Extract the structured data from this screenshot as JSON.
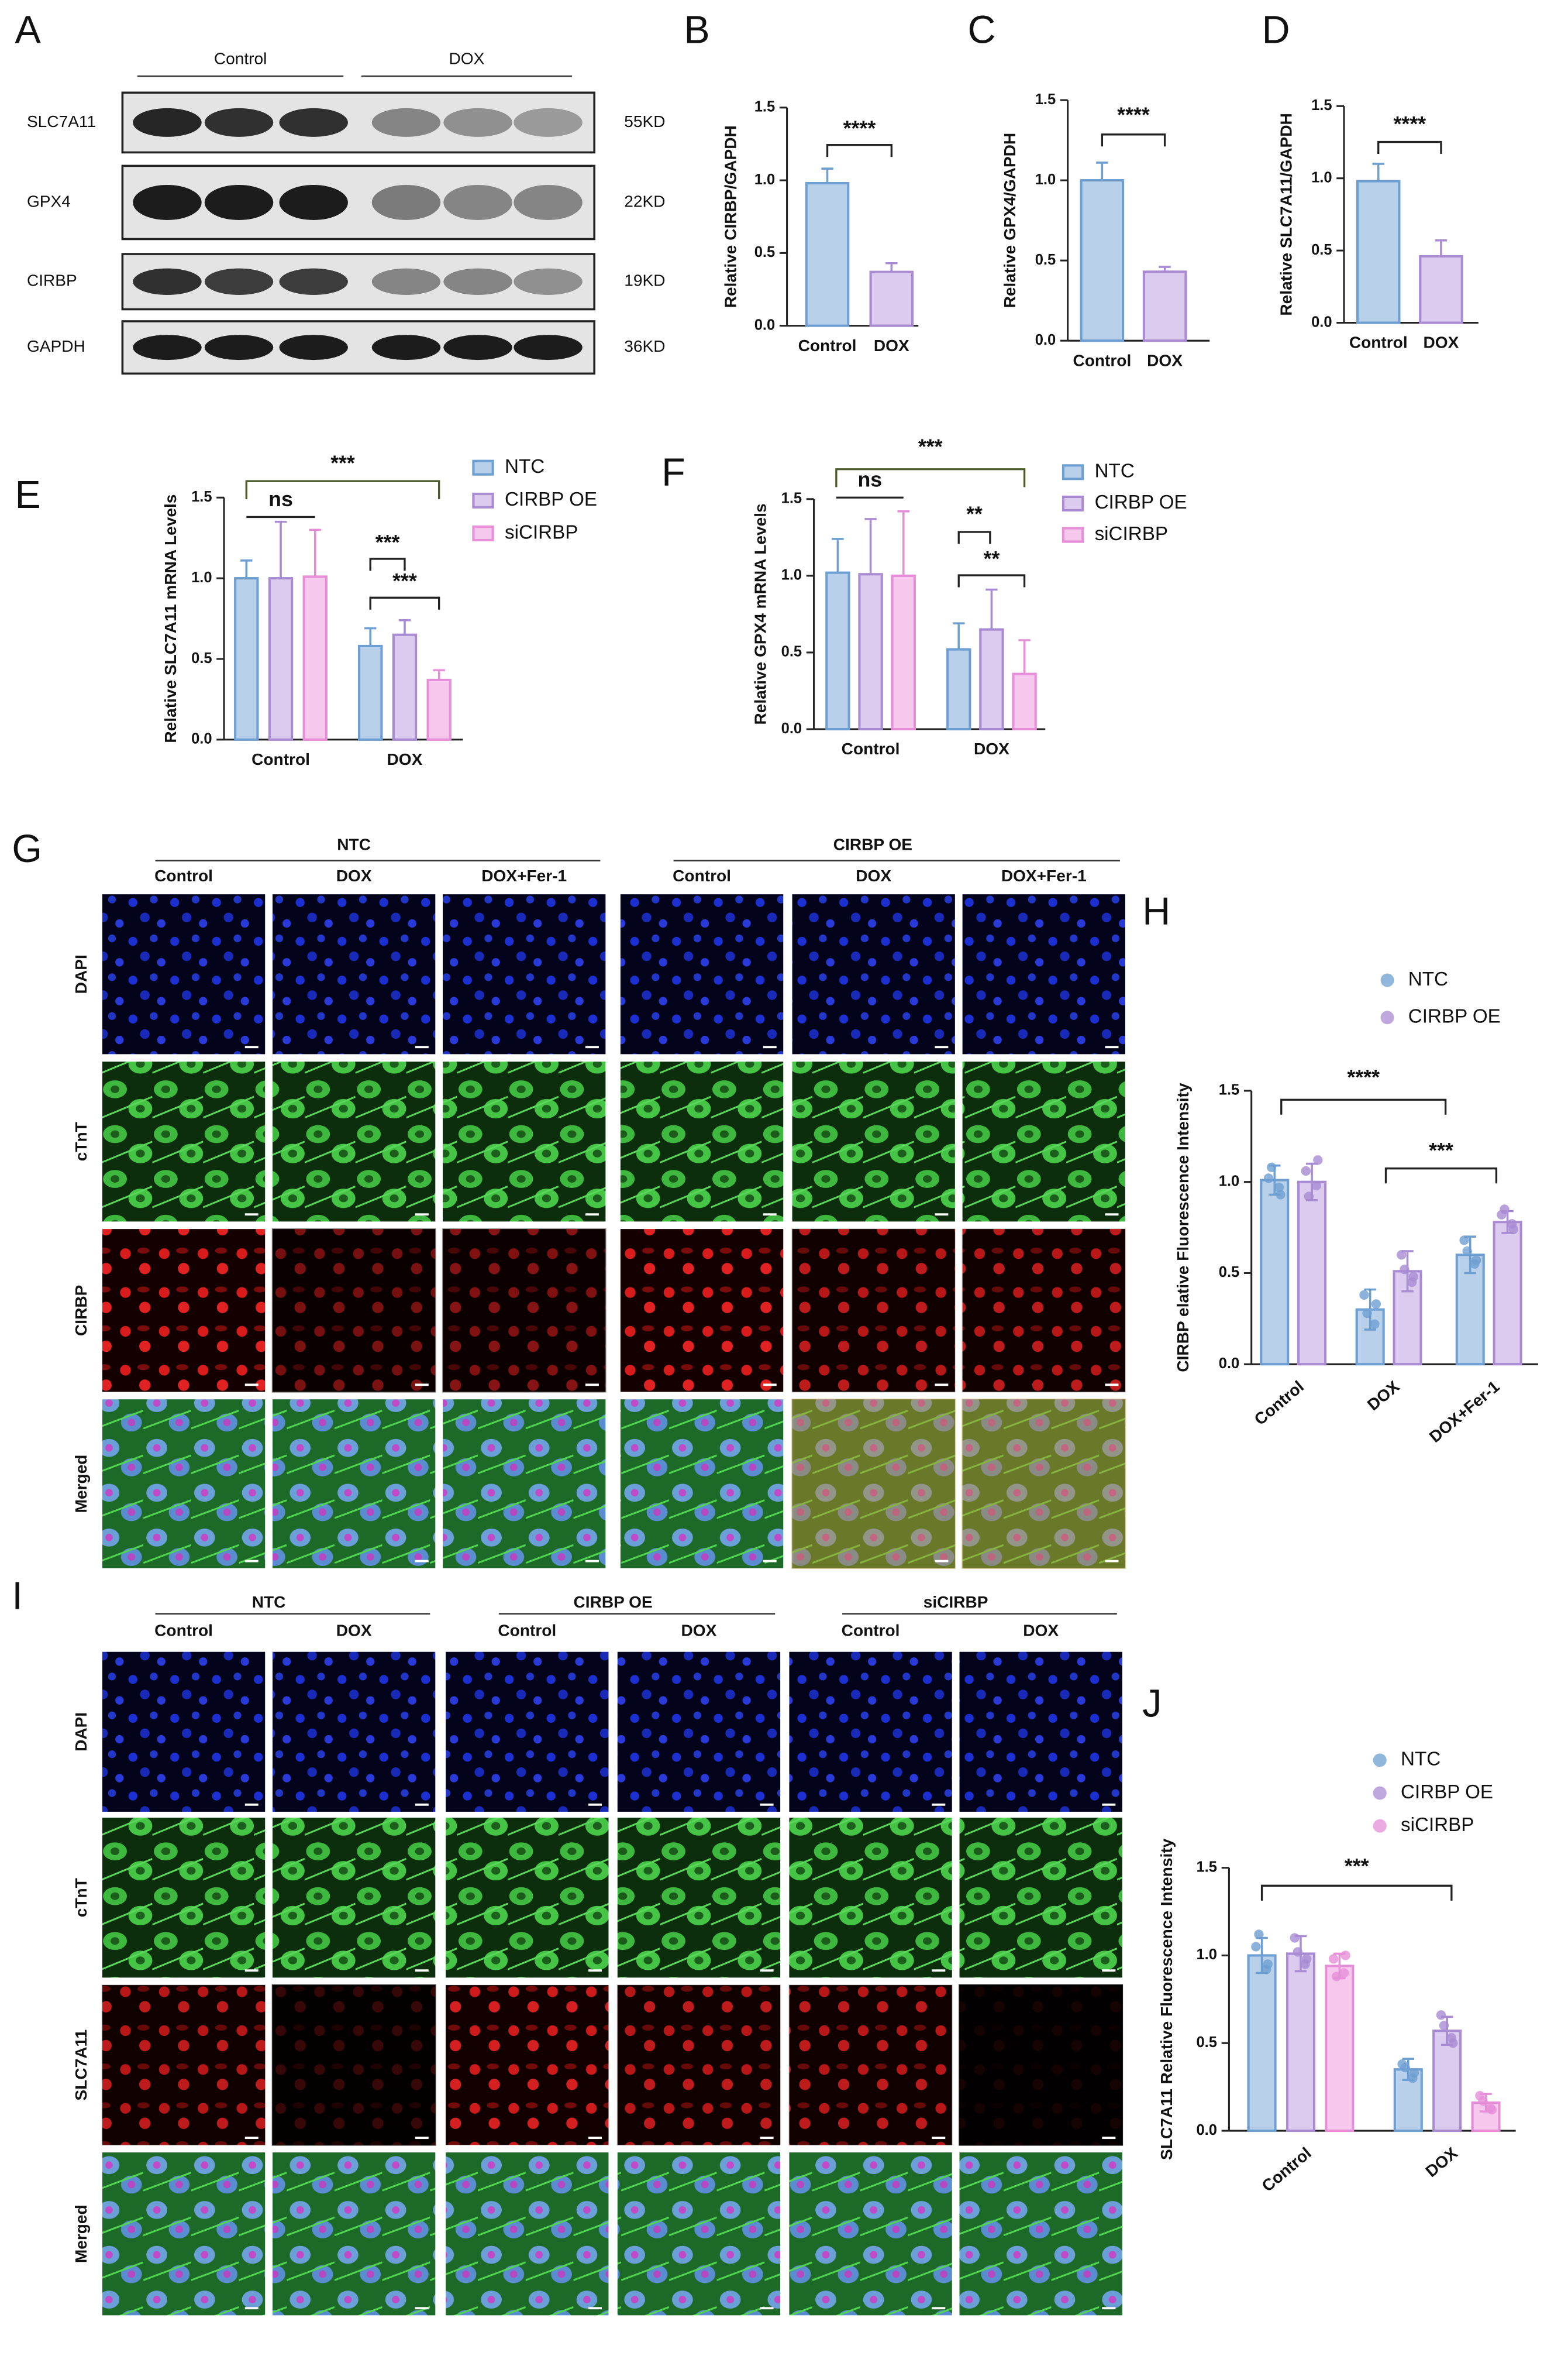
{
  "chart_data": [
    {
      "type": "bar",
      "panel": "B",
      "ylabel": "Relative CIRBP/GAPDH",
      "categories": [
        "Control",
        "DOX"
      ],
      "values": [
        0.98,
        0.37
      ],
      "errors": [
        0.1,
        0.06
      ],
      "colors": [
        "#b9d0ea",
        "#dccbee"
      ],
      "edge_colors": [
        "#6e9fd2",
        "#a88bd2"
      ],
      "ylim": [
        0,
        1.5
      ],
      "yticks": [
        {
          "value": 0,
          "label": "0.0"
        },
        {
          "value": 0.5,
          "label": "0.5"
        },
        {
          "value": 1,
          "label": "1.0"
        },
        {
          "value": 1.5,
          "label": "1.5"
        }
      ],
      "annotations": [
        "****"
      ]
    },
    {
      "type": "bar",
      "panel": "C",
      "ylabel": "Relative GPX4/GAPDH",
      "categories": [
        "Control",
        "DOX"
      ],
      "values": [
        1.0,
        0.43
      ],
      "errors": [
        0.11,
        0.03
      ],
      "colors": [
        "#b9d0ea",
        "#dccbee"
      ],
      "edge_colors": [
        "#6e9fd2",
        "#a88bd2"
      ],
      "ylim": [
        0,
        1.5
      ],
      "yticks": [
        {
          "value": 0,
          "label": "0.0"
        },
        {
          "value": 0.5,
          "label": "0.5"
        },
        {
          "value": 1,
          "label": "1.0"
        },
        {
          "value": 1.5,
          "label": "1.5"
        }
      ],
      "annotations": [
        "****"
      ]
    },
    {
      "type": "bar",
      "panel": "D",
      "ylabel": "Relative SLC7A11/GAPDH",
      "categories": [
        "Control",
        "DOX"
      ],
      "values": [
        0.98,
        0.46
      ],
      "errors": [
        0.12,
        0.11
      ],
      "colors": [
        "#b9d0ea",
        "#dccbee"
      ],
      "edge_colors": [
        "#6e9fd2",
        "#a88bd2"
      ],
      "ylim": [
        0,
        1.5
      ],
      "yticks": [
        {
          "value": 0,
          "label": "0.0"
        },
        {
          "value": 0.5,
          "label": "0.5"
        },
        {
          "value": 1,
          "label": "1.0"
        },
        {
          "value": 1.5,
          "label": "1.5"
        }
      ],
      "annotations": [
        "****"
      ]
    },
    {
      "type": "grouped_bar",
      "panel": "E",
      "ylabel": "Relative SLC7A11 mRNA Levels",
      "categories": [
        "Control",
        "DOX"
      ],
      "series": [
        {
          "name": "NTC",
          "color": "#b9d0ea",
          "edge_color": "#6e9fd2",
          "values": [
            1.0,
            0.58
          ],
          "errors": [
            0.11,
            0.11
          ]
        },
        {
          "name": "CIRBP OE",
          "color": "#dccbee",
          "edge_color": "#a88bd2",
          "values": [
            1.0,
            0.65
          ],
          "errors": [
            0.35,
            0.09
          ]
        },
        {
          "name": "siCIRBP",
          "color": "#f7c8ee",
          "edge_color": "#e68ed8",
          "values": [
            1.01,
            0.37
          ],
          "errors": [
            0.29,
            0.06
          ]
        }
      ],
      "ylim": [
        0,
        1.5
      ],
      "yticks": [
        {
          "value": 0,
          "label": "0.0"
        },
        {
          "value": 0.5,
          "label": "0.5"
        },
        {
          "value": 1,
          "label": "1.0"
        },
        {
          "value": 1.5,
          "label": "1.5"
        }
      ],
      "annotations": [
        "***",
        "ns",
        "***",
        "***"
      ]
    },
    {
      "type": "grouped_bar",
      "panel": "F",
      "ylabel": "Relative GPX4 mRNA Levels",
      "categories": [
        "Control",
        "DOX"
      ],
      "series": [
        {
          "name": "NTC",
          "color": "#b9d0ea",
          "edge_color": "#6e9fd2",
          "values": [
            1.02,
            0.52
          ],
          "errors": [
            0.22,
            0.17
          ]
        },
        {
          "name": "CIRBP OE",
          "color": "#dccbee",
          "edge_color": "#a88bd2",
          "values": [
            1.01,
            0.65
          ],
          "errors": [
            0.36,
            0.26
          ]
        },
        {
          "name": "siCIRBP",
          "color": "#f7c8ee",
          "edge_color": "#e68ed8",
          "values": [
            1.0,
            0.36
          ],
          "errors": [
            0.42,
            0.22
          ]
        }
      ],
      "ylim": [
        0,
        1.5
      ],
      "yticks": [
        {
          "value": 0,
          "label": "0.0"
        },
        {
          "value": 0.5,
          "label": "0.5"
        },
        {
          "value": 1,
          "label": "1.0"
        },
        {
          "value": 1.5,
          "label": "1.5"
        }
      ],
      "annotations": [
        "***",
        "ns",
        "**",
        "**"
      ]
    },
    {
      "type": "grouped_bar",
      "panel": "H",
      "ylabel": "CIRBP elative Fluorescence Intensity",
      "categories": [
        "Control",
        "DOX",
        "DOX+Fer-1"
      ],
      "series": [
        {
          "name": "NTC",
          "color": "#b9d0ea",
          "edge_color": "#6e9fd2",
          "values": [
            1.01,
            0.3,
            0.6
          ],
          "errors": [
            0.08,
            0.11,
            0.1
          ],
          "points": [
            [
              1.02,
              0.97,
              1.08,
              0.93
            ],
            [
              0.38,
              0.22,
              0.28,
              0.33
            ],
            [
              0.68,
              0.55,
              0.62,
              0.57
            ]
          ]
        },
        {
          "name": "CIRBP OE",
          "color": "#dccbee",
          "edge_color": "#a88bd2",
          "values": [
            1.0,
            0.51,
            0.78
          ],
          "errors": [
            0.1,
            0.11,
            0.06
          ],
          "points": [
            [
              1.06,
              0.98,
              0.92,
              1.12
            ],
            [
              0.6,
              0.45,
              0.52,
              0.48
            ],
            [
              0.82,
              0.77,
              0.85,
              0.74
            ]
          ]
        }
      ],
      "ylim": [
        0,
        1.5
      ],
      "yticks": [
        {
          "value": 0,
          "label": "0.0"
        },
        {
          "value": 0.5,
          "label": "0.5"
        },
        {
          "value": 1,
          "label": "1.0"
        },
        {
          "value": 1.5,
          "label": "1.5"
        }
      ],
      "annotations": [
        "****",
        "***"
      ]
    },
    {
      "type": "grouped_bar",
      "panel": "J",
      "ylabel": "SLC7A11 Relative Fluorescence Intensity",
      "categories": [
        "Control",
        "DOX"
      ],
      "series": [
        {
          "name": "NTC",
          "color": "#b9d0ea",
          "edge_color": "#6e9fd2",
          "values": [
            1.0,
            0.35
          ],
          "errors": [
            0.1,
            0.06
          ],
          "points": [
            [
              1.05,
              0.92,
              1.12,
              0.95
            ],
            [
              0.38,
              0.3,
              0.36,
              0.33
            ]
          ]
        },
        {
          "name": "CIRBP OE",
          "color": "#dccbee",
          "edge_color": "#a88bd2",
          "values": [
            1.01,
            0.57
          ],
          "errors": [
            0.1,
            0.08
          ],
          "points": [
            [
              1.1,
              0.95,
              1.02,
              0.98
            ],
            [
              0.66,
              0.53,
              0.6,
              0.5
            ]
          ]
        },
        {
          "name": "siCIRBP",
          "color": "#f7c8ee",
          "edge_color": "#e68ed8",
          "values": [
            0.94,
            0.16
          ],
          "errors": [
            0.07,
            0.05
          ],
          "points": [
            [
              0.98,
              0.9,
              0.88,
              1.0
            ],
            [
              0.2,
              0.13,
              0.17,
              0.12
            ]
          ]
        }
      ],
      "ylim": [
        0,
        1.5
      ],
      "yticks": [
        {
          "value": 0,
          "label": "0.0"
        },
        {
          "value": 0.5,
          "label": "0.5"
        },
        {
          "value": 1,
          "label": "1.0"
        },
        {
          "value": 1.5,
          "label": "1.5"
        }
      ],
      "annotations": [
        "***"
      ]
    }
  ],
  "blot": {
    "panel": "A",
    "groups": [
      "Control",
      "DOX"
    ],
    "rows": [
      {
        "name": "SLC7A11",
        "size": "55KD"
      },
      {
        "name": "GPX4",
        "size": "22KD"
      },
      {
        "name": "CIRBP",
        "size": "19KD"
      },
      {
        "name": "GAPDH",
        "size": "36KD"
      }
    ]
  },
  "imaging": [
    {
      "panel": "G",
      "groups": [
        {
          "name": "NTC",
          "columns": [
            "Control",
            "DOX",
            "DOX+Fer-1"
          ]
        },
        {
          "name": "CIRBP OE",
          "columns": [
            "Control",
            "DOX",
            "DOX+Fer-1"
          ]
        }
      ],
      "rows": [
        "DAPI",
        "cTnT",
        "CIRBP",
        "Merged"
      ]
    },
    {
      "panel": "I",
      "groups": [
        {
          "name": "NTC",
          "columns": [
            "Control",
            "DOX"
          ]
        },
        {
          "name": "CIRBP OE",
          "columns": [
            "Control",
            "DOX"
          ]
        },
        {
          "name": "siCIRBP",
          "columns": [
            "Control",
            "DOX"
          ]
        }
      ],
      "rows": [
        "DAPI",
        "cTnT",
        "SLC7A11",
        "Merged"
      ]
    }
  ]
}
